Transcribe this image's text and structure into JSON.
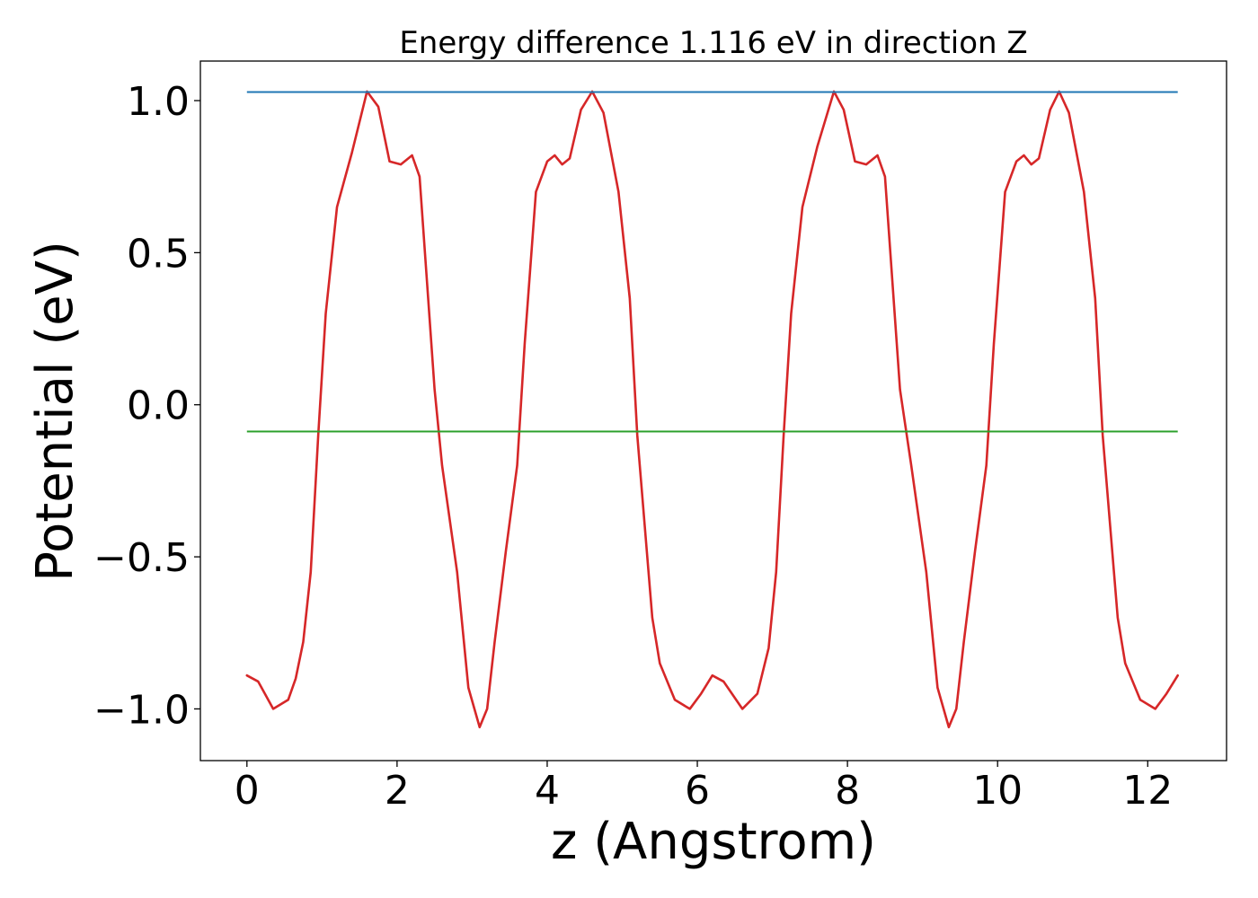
{
  "chart_data": {
    "type": "line",
    "title": "Energy difference 1.116 eV in direction Z",
    "xlabel": "z (Angstrom)",
    "ylabel": "Potential (eV)",
    "xlim": [
      -0.62,
      13.05
    ],
    "ylim": [
      -1.17,
      1.13
    ],
    "xticks": [
      0,
      2,
      4,
      6,
      8,
      10,
      12
    ],
    "yticks": [
      -1.0,
      -0.5,
      0.0,
      0.5,
      1.0
    ],
    "ytick_labels": [
      "−1.0",
      "−0.5",
      "0.0",
      "0.5",
      "1.0"
    ],
    "grid": false,
    "series": [
      {
        "kind": "curve",
        "color": "#d62728",
        "points": [
          [
            0.0,
            -0.89
          ],
          [
            0.15,
            -0.91
          ],
          [
            0.35,
            -1.0
          ],
          [
            0.55,
            -0.97
          ],
          [
            0.65,
            -0.9
          ],
          [
            0.75,
            -0.78
          ],
          [
            0.85,
            -0.55
          ],
          [
            0.95,
            -0.1
          ],
          [
            1.05,
            0.3
          ],
          [
            1.2,
            0.65
          ],
          [
            1.4,
            0.83
          ],
          [
            1.6,
            1.03
          ],
          [
            1.75,
            0.98
          ],
          [
            1.9,
            0.8
          ],
          [
            2.05,
            0.79
          ],
          [
            2.2,
            0.82
          ],
          [
            2.3,
            0.75
          ],
          [
            2.4,
            0.4
          ],
          [
            2.5,
            0.05
          ],
          [
            2.6,
            -0.2
          ],
          [
            2.8,
            -0.55
          ],
          [
            2.95,
            -0.93
          ],
          [
            3.1,
            -1.06
          ],
          [
            3.2,
            -1.0
          ],
          [
            3.3,
            -0.78
          ],
          [
            3.45,
            -0.48
          ],
          [
            3.6,
            -0.2
          ],
          [
            3.7,
            0.2
          ],
          [
            3.85,
            0.7
          ],
          [
            4.0,
            0.8
          ],
          [
            4.1,
            0.82
          ],
          [
            4.2,
            0.79
          ],
          [
            4.3,
            0.81
          ],
          [
            4.45,
            0.97
          ],
          [
            4.6,
            1.03
          ],
          [
            4.75,
            0.96
          ],
          [
            4.95,
            0.7
          ],
          [
            5.1,
            0.35
          ],
          [
            5.2,
            -0.1
          ],
          [
            5.3,
            -0.4
          ],
          [
            5.4,
            -0.7
          ],
          [
            5.5,
            -0.85
          ],
          [
            5.7,
            -0.97
          ],
          [
            5.9,
            -1.0
          ],
          [
            6.05,
            -0.95
          ],
          [
            6.2,
            -0.89
          ],
          [
            6.35,
            -0.91
          ],
          [
            6.6,
            -1.0
          ],
          [
            6.8,
            -0.95
          ],
          [
            6.95,
            -0.8
          ],
          [
            7.05,
            -0.55
          ],
          [
            7.15,
            -0.1
          ],
          [
            7.25,
            0.3
          ],
          [
            7.4,
            0.65
          ],
          [
            7.6,
            0.85
          ],
          [
            7.82,
            1.03
          ],
          [
            7.95,
            0.97
          ],
          [
            8.1,
            0.8
          ],
          [
            8.25,
            0.79
          ],
          [
            8.4,
            0.82
          ],
          [
            8.5,
            0.75
          ],
          [
            8.6,
            0.4
          ],
          [
            8.7,
            0.05
          ],
          [
            8.85,
            -0.2
          ],
          [
            9.05,
            -0.55
          ],
          [
            9.2,
            -0.93
          ],
          [
            9.35,
            -1.06
          ],
          [
            9.45,
            -1.0
          ],
          [
            9.55,
            -0.78
          ],
          [
            9.7,
            -0.48
          ],
          [
            9.85,
            -0.2
          ],
          [
            9.95,
            0.2
          ],
          [
            10.1,
            0.7
          ],
          [
            10.25,
            0.8
          ],
          [
            10.35,
            0.82
          ],
          [
            10.45,
            0.79
          ],
          [
            10.55,
            0.81
          ],
          [
            10.7,
            0.97
          ],
          [
            10.82,
            1.03
          ],
          [
            10.95,
            0.96
          ],
          [
            11.15,
            0.7
          ],
          [
            11.3,
            0.35
          ],
          [
            11.4,
            -0.1
          ],
          [
            11.5,
            -0.4
          ],
          [
            11.6,
            -0.7
          ],
          [
            11.7,
            -0.85
          ],
          [
            11.9,
            -0.97
          ],
          [
            12.1,
            -1.0
          ],
          [
            12.25,
            -0.95
          ],
          [
            12.4,
            -0.89
          ]
        ]
      },
      {
        "kind": "hline",
        "color": "#1f77b4",
        "x": [
          0.0,
          12.4
        ],
        "y": 1.028
      },
      {
        "kind": "hline",
        "color": "#2ca02c",
        "x": [
          0.0,
          12.4
        ],
        "y": -0.088
      }
    ]
  }
}
